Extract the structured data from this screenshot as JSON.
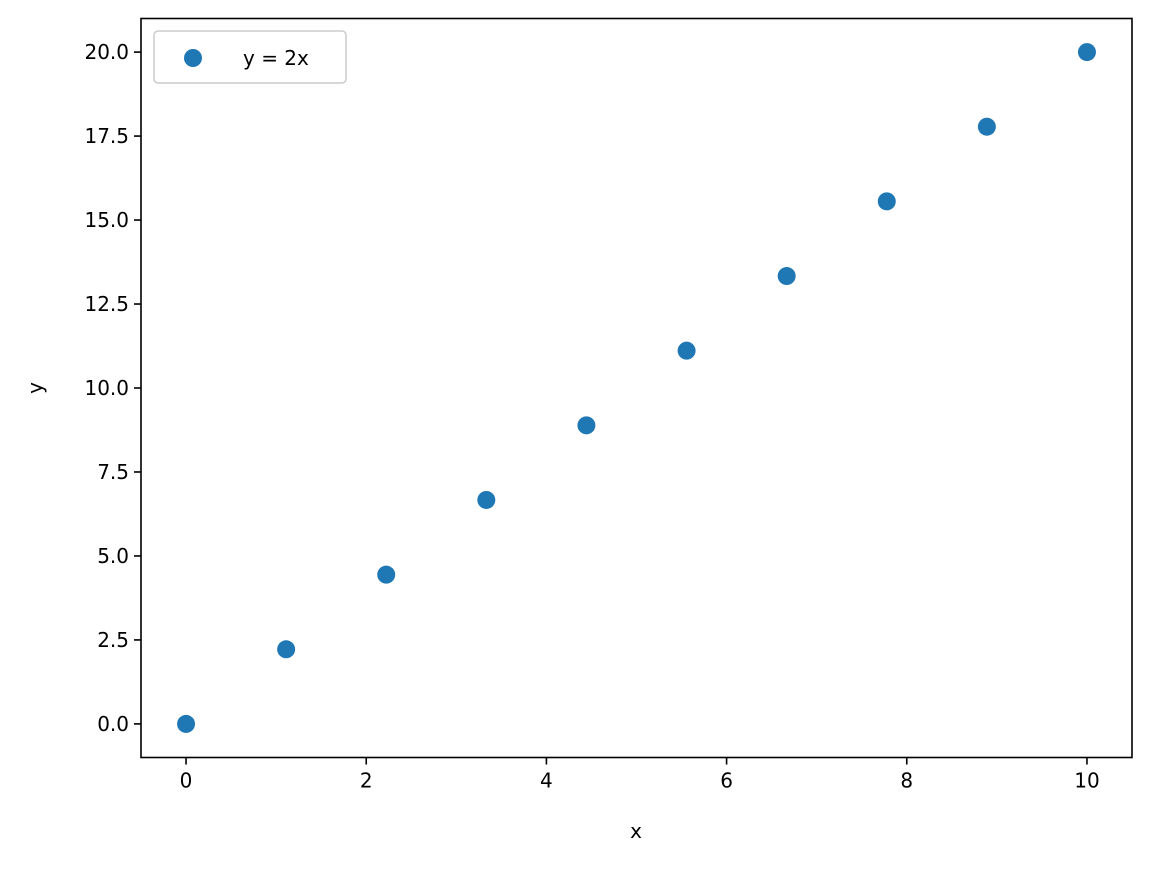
{
  "chart_data": {
    "type": "scatter",
    "title": "",
    "xlabel": "x",
    "ylabel": "y",
    "xlim": [
      -0.5,
      10.5
    ],
    "ylim": [
      -1.0,
      21.0
    ],
    "xticks": [
      0,
      2,
      4,
      6,
      8,
      10
    ],
    "xtick_labels": [
      "0",
      "2",
      "4",
      "6",
      "8",
      "10"
    ],
    "yticks": [
      0,
      2.5,
      5,
      7.5,
      10,
      12.5,
      15,
      17.5,
      20
    ],
    "ytick_labels": [
      "0.0",
      "2.5",
      "5.0",
      "7.5",
      "10.0",
      "12.5",
      "15.0",
      "17.5",
      "20.0"
    ],
    "grid": false,
    "legend_placement": "upper-left",
    "series": [
      {
        "name": "y = 2x",
        "color": "#1f77b4",
        "x": [
          0,
          1.111,
          2.222,
          3.333,
          4.444,
          5.556,
          6.667,
          7.778,
          8.889,
          10
        ],
        "y": [
          0,
          2.222,
          4.444,
          6.667,
          8.889,
          11.111,
          13.333,
          15.556,
          17.778,
          20
        ]
      }
    ]
  }
}
